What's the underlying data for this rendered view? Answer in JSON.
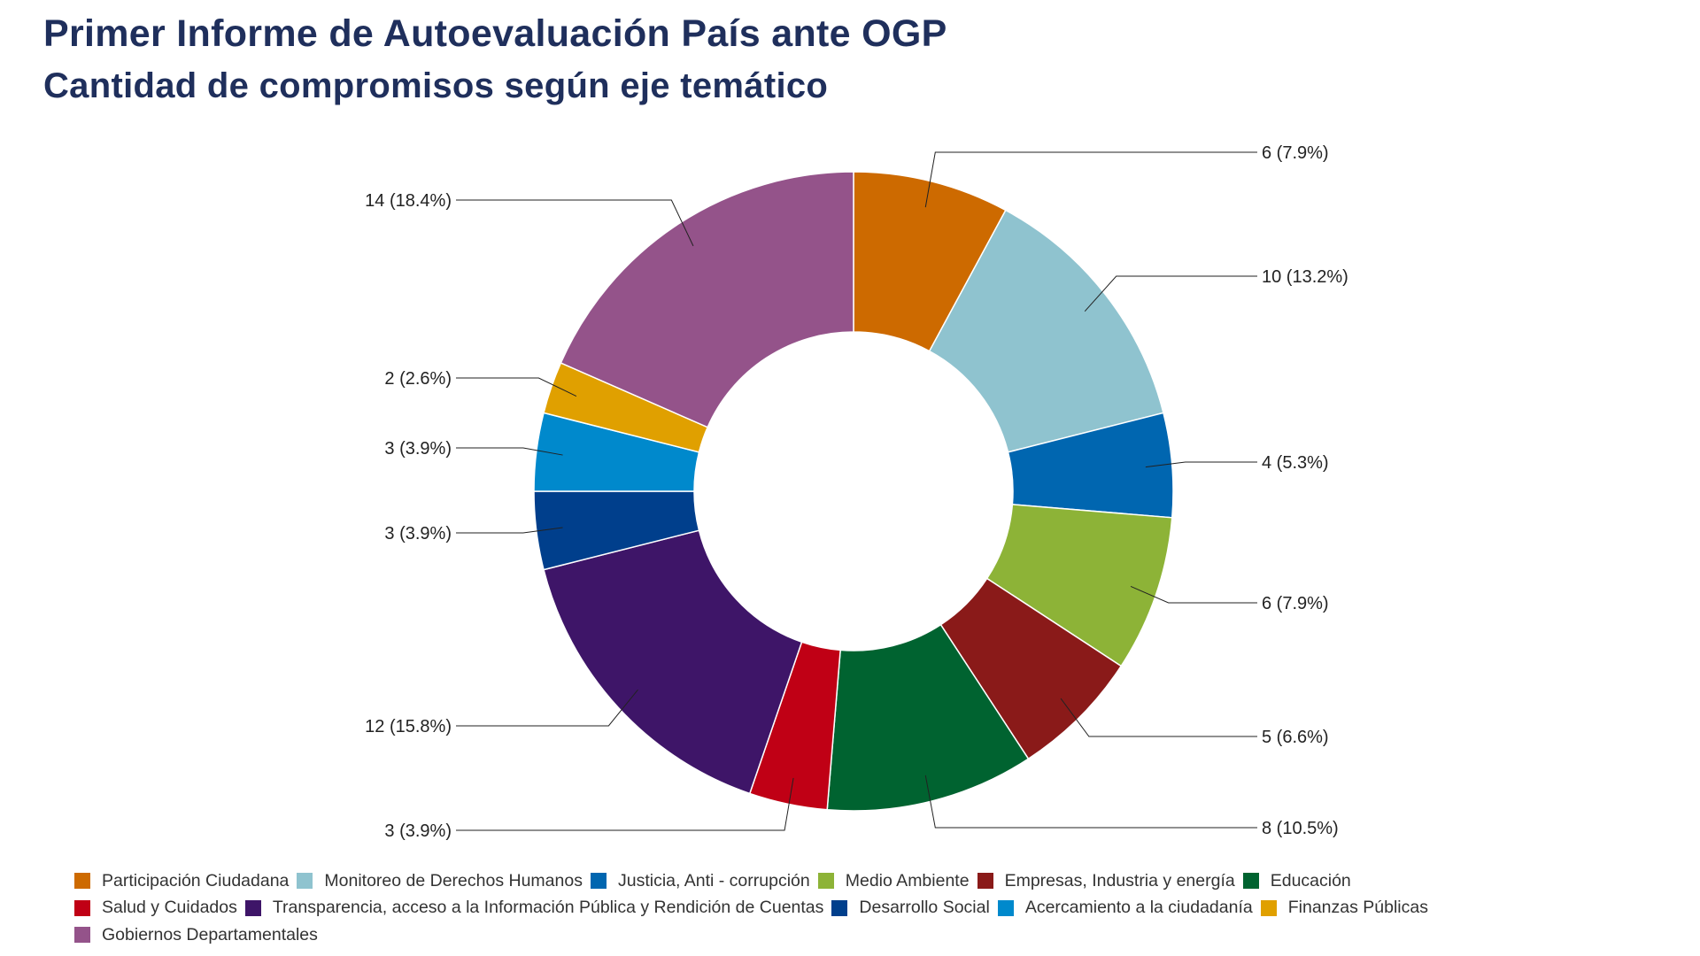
{
  "title": "Primer Informe de Autoevaluación País ante OGP",
  "subtitle": "Cantidad de compromisos según eje temático",
  "chart_data": {
    "type": "pie",
    "style": "donut",
    "legend_position": "bottom",
    "series": [
      {
        "name": "Participación Ciudadana",
        "value": 6,
        "label": "6 (7.9%)",
        "color": "#cd6a00"
      },
      {
        "name": "Monitoreo de Derechos Humanos",
        "value": 10,
        "label": "10 (13.2%)",
        "color": "#8fc3cf"
      },
      {
        "name": "Justicia, Anti - corrupción",
        "value": 4,
        "label": "4 (5.3%)",
        "color": "#0066b0"
      },
      {
        "name": "Medio Ambiente",
        "value": 6,
        "label": "6 (7.9%)",
        "color": "#8db337"
      },
      {
        "name": "Empresas, Industria y energía",
        "value": 5,
        "label": "5 (6.6%)",
        "color": "#8a1a19"
      },
      {
        "name": "Educación",
        "value": 8,
        "label": "8 (10.5%)",
        "color": "#006330"
      },
      {
        "name": "Salud y Cuidados",
        "value": 3,
        "label": "3 (3.9%)",
        "color": "#c00015"
      },
      {
        "name": "Transparencia, acceso a la Información Pública y Rendición de Cuentas",
        "value": 12,
        "label": "12 (15.8%)",
        "color": "#3e1568"
      },
      {
        "name": "Desarrollo Social",
        "value": 3,
        "label": "3 (3.9%)",
        "color": "#003f8c"
      },
      {
        "name": "Acercamiento a la ciudadanía",
        "value": 3,
        "label": "3 (3.9%)",
        "color": "#0089cc"
      },
      {
        "name": "Finanzas Públicas",
        "value": 2,
        "label": "2 (2.6%)",
        "color": "#e0a000"
      },
      {
        "name": "Gobiernos Departamentales",
        "value": 14,
        "label": "14 (18.4%)",
        "color": "#94538a"
      }
    ]
  },
  "legend_rows": [
    [
      0,
      1,
      2,
      3,
      4,
      5
    ],
    [
      6,
      7,
      8,
      9,
      10
    ],
    [
      11
    ]
  ]
}
